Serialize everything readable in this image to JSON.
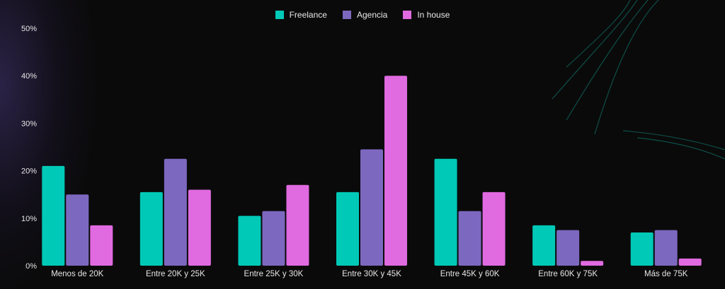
{
  "chart_data": {
    "type": "bar",
    "categories": [
      "Menos de 20K",
      "Entre 20K y 25K",
      "Entre 25K y 30K",
      "Entre 30K y 45K",
      "Entre 45K y 60K",
      "Entre 60K y 75K",
      "Más de 75K"
    ],
    "series": [
      {
        "name": "Freelance",
        "color": "#00c9b7",
        "values": [
          21,
          15.5,
          10.5,
          15.5,
          22.5,
          8.5,
          7
        ]
      },
      {
        "name": "Agencia",
        "color": "#7d68bf",
        "values": [
          15,
          22.5,
          11.5,
          24.5,
          11.5,
          7.5,
          7.5
        ]
      },
      {
        "name": "In house",
        "color": "#e06ae0",
        "values": [
          8.5,
          16,
          17,
          40,
          15.5,
          1,
          1.5
        ]
      }
    ],
    "ylim": [
      0,
      50
    ],
    "yticks": [
      "0%",
      "10%",
      "20%",
      "30%",
      "40%",
      "50%"
    ],
    "ytick_values": [
      0,
      10,
      20,
      30,
      40,
      50
    ],
    "legend_position": "top-center",
    "grid": false,
    "background": "#0a0a0a"
  }
}
